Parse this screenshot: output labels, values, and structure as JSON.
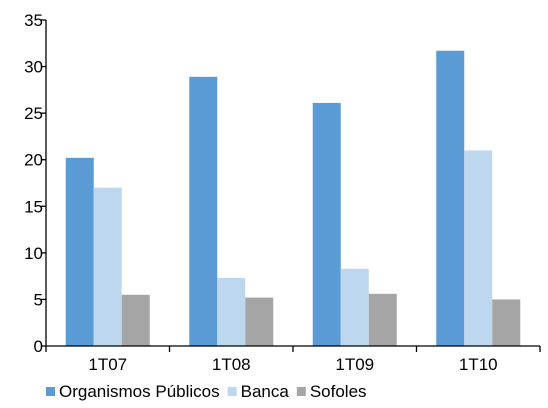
{
  "chart_data": {
    "type": "bar",
    "categories": [
      "1T07",
      "1T08",
      "1T09",
      "1T10"
    ],
    "series": [
      {
        "name": "Organismos Públicos",
        "color": "#5b9bd5",
        "values": [
          20.2,
          28.9,
          26.1,
          31.7
        ]
      },
      {
        "name": "Banca",
        "color": "#bdd7ee",
        "values": [
          17.0,
          7.3,
          8.3,
          21.0
        ]
      },
      {
        "name": "Sofoles",
        "color": "#a5a5a5",
        "values": [
          5.5,
          5.2,
          5.6,
          5.0
        ]
      }
    ],
    "ylim": [
      0,
      35
    ],
    "yticks": [
      "0",
      "5",
      "10",
      "15",
      "20",
      "25",
      "30",
      "35"
    ],
    "title": "",
    "xlabel": "",
    "ylabel": "",
    "grid": false,
    "legend_position": "bottom"
  }
}
